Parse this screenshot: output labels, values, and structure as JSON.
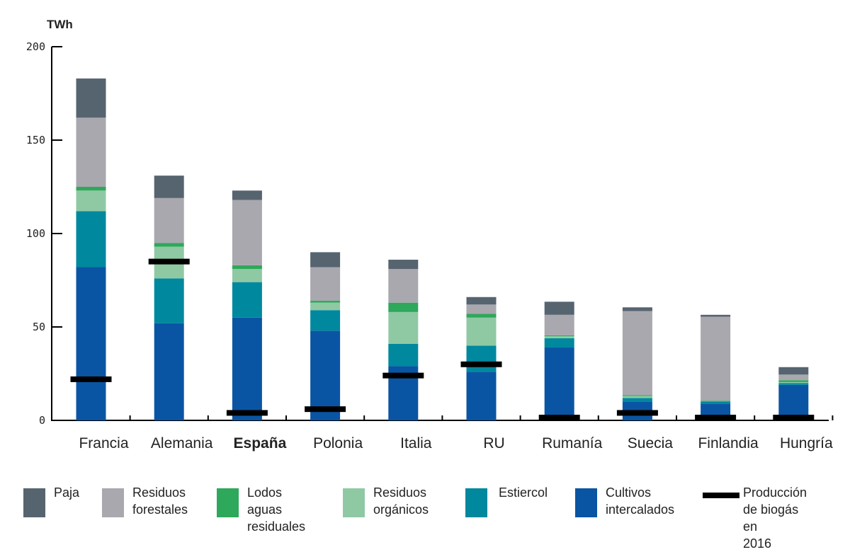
{
  "chart_data": {
    "type": "bar",
    "stacked": true,
    "unit_label": "TWh",
    "ylim": [
      0,
      200
    ],
    "yticks": [
      0,
      50,
      100,
      150,
      200
    ],
    "categories": [
      "Francia",
      "Alemania",
      "España",
      "Polonia",
      "Italia",
      "RU",
      "Rumanía",
      "Suecia",
      "Finlandia",
      "Hungría"
    ],
    "highlight_category": "España",
    "series": [
      {
        "name": "Cultivos intercalados",
        "color": "#0a55a3",
        "values": [
          82,
          52,
          55,
          48,
          29,
          26,
          39,
          10,
          9,
          19
        ]
      },
      {
        "name": "Estiercol",
        "color": "#00889e",
        "values": [
          30,
          24,
          19,
          11,
          12,
          14,
          5,
          2,
          1,
          1
        ]
      },
      {
        "name": "Residuos orgánicos",
        "color": "#8fc9a4",
        "values": [
          11,
          17,
          7,
          4,
          17,
          15,
          1,
          1,
          0,
          0.5
        ]
      },
      {
        "name": "Lodos aguas residuales",
        "color": "#2ea85a",
        "values": [
          2,
          2,
          2,
          1,
          5,
          2,
          0.5,
          0.5,
          0.5,
          1
        ]
      },
      {
        "name": "Residuos forestales",
        "color": "#a8a8ae",
        "values": [
          37,
          24,
          35,
          18,
          18,
          5,
          11,
          45,
          45,
          3
        ]
      },
      {
        "name": "Paja",
        "color": "#566470",
        "values": [
          21,
          12,
          5,
          8,
          5,
          4,
          7,
          2,
          1,
          4
        ]
      }
    ],
    "production_2016": {
      "name": "Producción de biogás en 2016",
      "color": "#000000",
      "values": [
        22,
        85,
        4,
        6,
        24,
        30,
        1.5,
        4,
        1.5,
        1.5
      ]
    }
  },
  "legend": {
    "paja": "Paja",
    "forestales_1": "Residuos",
    "forestales_2": "forestales",
    "lodos_1": "Lodos aguas",
    "lodos_2": "residuales",
    "organicos_1": "Residuos",
    "organicos_2": "orgánicos",
    "estiercol": "Estiercol",
    "cultivos_1": "Cultivos",
    "cultivos_2": "intercalados",
    "produccion_1": "Producción",
    "produccion_2": "de biogás en",
    "produccion_3": "2016"
  }
}
